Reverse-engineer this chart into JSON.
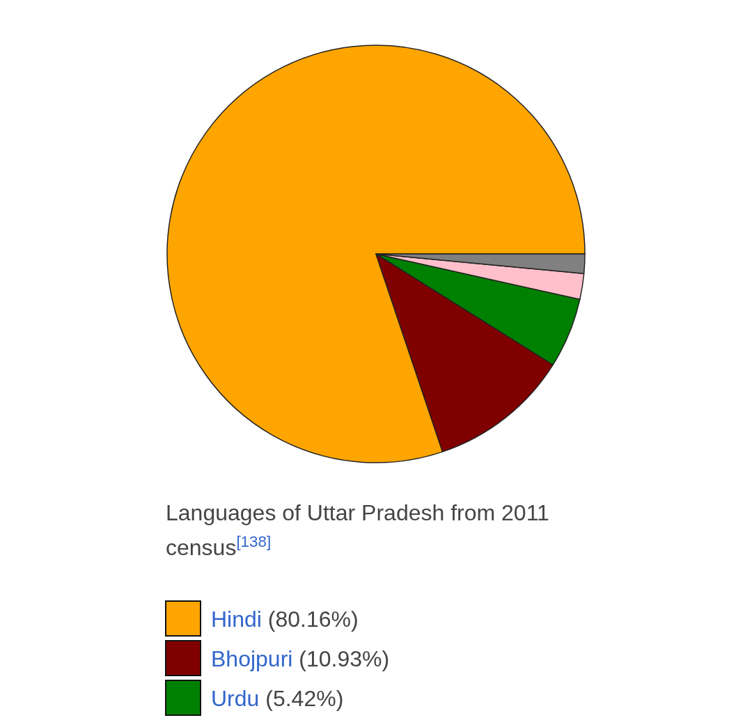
{
  "chart_data": {
    "type": "pie",
    "title": "Languages of Uttar Pradesh from 2011 census$^{[138]}$",
    "categories": [
      "Hindi",
      "Bhojpuri",
      "Urdu",
      null,
      null
    ],
    "values": [
      80.16,
      10.93,
      5.42,
      1.99,
      1.5
    ],
    "value_labels": [
      "(80.16%)",
      "(10.93%)",
      "(5.42%)",
      null,
      null
    ],
    "colors": [
      "#ffa500",
      "#800000",
      "#008000",
      "#ffc0cb",
      "#808080"
    ],
    "legend": "bottom"
  }
}
